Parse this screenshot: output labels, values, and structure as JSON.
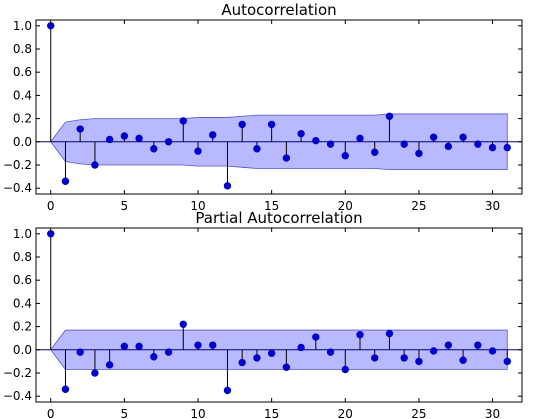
{
  "colors": {
    "marker": "#0000cc",
    "zero_line": "#000080",
    "band_fill": "#8080ff",
    "band_stroke": "#5555cc",
    "axes": "#000000"
  },
  "chart_data": [
    {
      "type": "stem",
      "title": "Autocorrelation",
      "xlim": [
        -1,
        32
      ],
      "ylim": [
        -0.45,
        1.05
      ],
      "xticks": [
        0,
        5,
        10,
        15,
        20,
        25,
        30
      ],
      "yticks": [
        -0.4,
        -0.2,
        0.0,
        0.2,
        0.4,
        0.6,
        0.8,
        1.0
      ],
      "ytick_labels": [
        "−0.4",
        "−0.2",
        "0.0",
        "0.2",
        "0.4",
        "0.6",
        "0.8",
        "1.0"
      ],
      "x": [
        0,
        1,
        2,
        3,
        4,
        5,
        6,
        7,
        8,
        9,
        10,
        11,
        12,
        13,
        14,
        15,
        16,
        17,
        18,
        19,
        20,
        21,
        22,
        23,
        24,
        25,
        26,
        27,
        28,
        29,
        30,
        31
      ],
      "values": [
        1.0,
        -0.34,
        0.11,
        -0.2,
        0.02,
        0.05,
        0.03,
        -0.06,
        0.0,
        0.18,
        -0.08,
        0.06,
        -0.38,
        0.15,
        -0.06,
        0.15,
        -0.14,
        0.07,
        0.01,
        -0.02,
        -0.12,
        0.03,
        -0.09,
        0.22,
        -0.02,
        -0.1,
        0.04,
        -0.04,
        0.04,
        -0.02,
        -0.05,
        -0.05
      ],
      "confidence_band": {
        "x": [
          0,
          1,
          2,
          3,
          4,
          5,
          6,
          7,
          8,
          9,
          10,
          11,
          12,
          13,
          14,
          15,
          16,
          17,
          18,
          19,
          20,
          21,
          22,
          23,
          24,
          25,
          26,
          27,
          28,
          29,
          30,
          31
        ],
        "upper": [
          0.0,
          0.17,
          0.19,
          0.2,
          0.2,
          0.2,
          0.2,
          0.2,
          0.2,
          0.2,
          0.21,
          0.21,
          0.21,
          0.22,
          0.23,
          0.23,
          0.23,
          0.23,
          0.23,
          0.23,
          0.23,
          0.23,
          0.23,
          0.24,
          0.24,
          0.24,
          0.24,
          0.24,
          0.24,
          0.24,
          0.24,
          0.24
        ],
        "lower": [
          0.0,
          -0.17,
          -0.19,
          -0.2,
          -0.2,
          -0.2,
          -0.2,
          -0.2,
          -0.2,
          -0.2,
          -0.21,
          -0.21,
          -0.21,
          -0.22,
          -0.23,
          -0.23,
          -0.23,
          -0.23,
          -0.23,
          -0.23,
          -0.23,
          -0.23,
          -0.23,
          -0.24,
          -0.24,
          -0.24,
          -0.24,
          -0.24,
          -0.24,
          -0.24,
          -0.24,
          -0.24
        ]
      }
    },
    {
      "type": "stem",
      "title": "Partial Autocorrelation",
      "xlim": [
        -1,
        32
      ],
      "ylim": [
        -0.45,
        1.05
      ],
      "xticks": [
        0,
        5,
        10,
        15,
        20,
        25,
        30
      ],
      "yticks": [
        -0.4,
        -0.2,
        0.0,
        0.2,
        0.4,
        0.6,
        0.8,
        1.0
      ],
      "ytick_labels": [
        "−0.4",
        "−0.2",
        "0.0",
        "0.2",
        "0.4",
        "0.6",
        "0.8",
        "1.0"
      ],
      "x": [
        0,
        1,
        2,
        3,
        4,
        5,
        6,
        7,
        8,
        9,
        10,
        11,
        12,
        13,
        14,
        15,
        16,
        17,
        18,
        19,
        20,
        21,
        22,
        23,
        24,
        25,
        26,
        27,
        28,
        29,
        30,
        31
      ],
      "values": [
        1.0,
        -0.34,
        -0.02,
        -0.2,
        -0.13,
        0.03,
        0.03,
        -0.06,
        -0.02,
        0.22,
        0.04,
        0.04,
        -0.35,
        -0.11,
        -0.07,
        -0.03,
        -0.15,
        0.02,
        0.11,
        -0.02,
        -0.17,
        0.13,
        -0.07,
        0.14,
        -0.07,
        -0.1,
        -0.01,
        0.04,
        -0.09,
        0.04,
        -0.01,
        -0.1
      ],
      "confidence_band": {
        "x": [
          0,
          1,
          31
        ],
        "upper": [
          0.0,
          0.17,
          0.17
        ],
        "lower": [
          0.0,
          -0.17,
          -0.17
        ]
      }
    }
  ]
}
